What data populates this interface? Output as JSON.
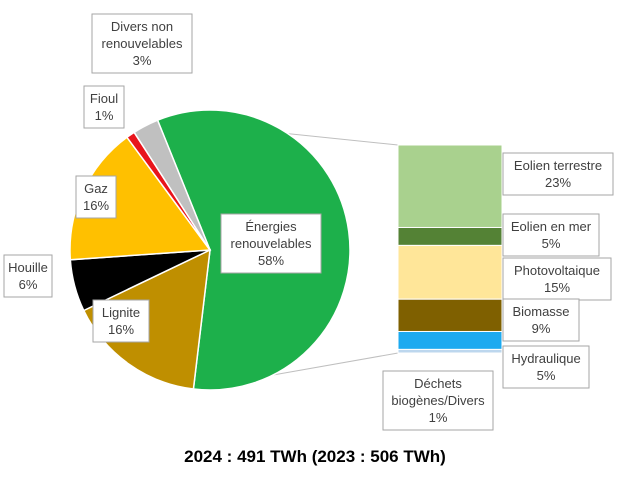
{
  "chart_data": {
    "type": "pie",
    "title": "2024 : 491 TWh (2023 : 506 TWh)",
    "slices": [
      {
        "label": "Énergies renouvelables",
        "value": 58,
        "display": "58%",
        "color": "#1db04b"
      },
      {
        "label": "Lignite",
        "value": 16,
        "display": "16%",
        "color": "#bf8f00"
      },
      {
        "label": "Houille",
        "value": 6,
        "display": "6%",
        "color": "#000000"
      },
      {
        "label": "Gaz",
        "value": 16,
        "display": "16%",
        "color": "#ffc000"
      },
      {
        "label": "Fioul",
        "value": 1,
        "display": "1%",
        "color": "#e8141b"
      },
      {
        "label": "Divers non renouvelables",
        "value": 3,
        "display": "3%",
        "color": "#c0c0c0"
      }
    ],
    "breakdown": {
      "of": "Énergies renouvelables",
      "items": [
        {
          "label": "Eolien terrestre",
          "value": 23,
          "display": "23%",
          "color": "#a9d18e"
        },
        {
          "label": "Eolien en mer",
          "value": 5,
          "display": "5%",
          "color": "#548235"
        },
        {
          "label": "Photovoltaique",
          "value": 15,
          "display": "15%",
          "color": "#ffe699"
        },
        {
          "label": "Biomasse",
          "value": 9,
          "display": "9%",
          "color": "#7f6000"
        },
        {
          "label": "Hydraulique",
          "value": 5,
          "display": "5%",
          "color": "#1caaf0"
        },
        {
          "label": "Déchets biogènes/Divers",
          "value": 1,
          "display": "1%",
          "color": "#bdd7ee"
        }
      ]
    }
  }
}
